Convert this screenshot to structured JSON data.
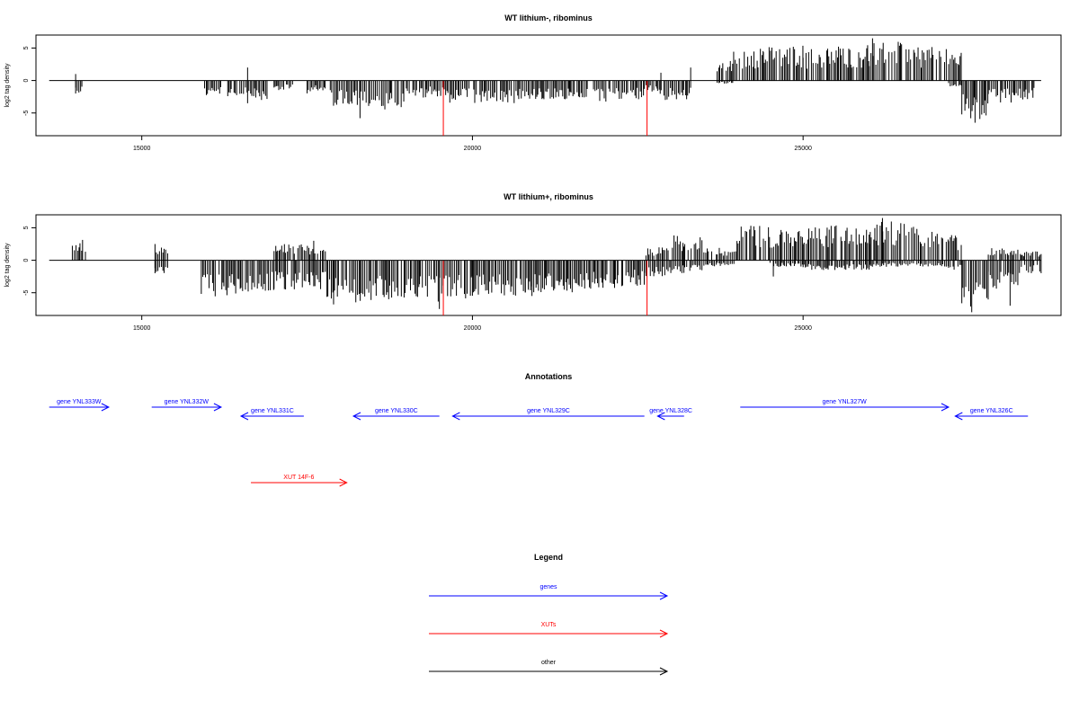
{
  "chart_data": [
    {
      "type": "bar",
      "title": "WT lithium-, ribominus",
      "xlabel": "",
      "ylabel": "log2 tag density",
      "xlim": [
        13400,
        28900
      ],
      "ylim": [
        -8.5,
        7
      ],
      "xticks": [
        15000,
        20000,
        25000
      ],
      "yticks": [
        5,
        0,
        -5
      ],
      "baseline_range": [
        13600,
        28600
      ],
      "profile": [
        [
          14000,
          14100,
          0,
          -2
        ],
        [
          15950,
          16200,
          0,
          -2.5
        ],
        [
          16300,
          16900,
          0,
          -3
        ],
        [
          17000,
          17300,
          0,
          -1.5
        ],
        [
          17500,
          17800,
          0,
          -2
        ],
        [
          17850,
          18400,
          0,
          -4
        ],
        [
          18400,
          19000,
          0,
          -4.5
        ],
        [
          19000,
          19300,
          0,
          -3
        ],
        [
          19300,
          19600,
          0,
          -2.5
        ],
        [
          19600,
          20200,
          0,
          -3.5
        ],
        [
          20200,
          20700,
          0,
          -3.5
        ],
        [
          20700,
          21400,
          0,
          -3
        ],
        [
          21400,
          22100,
          0,
          -3.5
        ],
        [
          22100,
          22600,
          0,
          -3
        ],
        [
          22600,
          22800,
          0,
          -2
        ],
        [
          22800,
          23300,
          0,
          -3
        ],
        [
          23700,
          23950,
          3,
          -0.5
        ],
        [
          23950,
          24400,
          5,
          0
        ],
        [
          24400,
          25000,
          5.5,
          0
        ],
        [
          25000,
          25500,
          5,
          0
        ],
        [
          25500,
          26000,
          5.5,
          0
        ],
        [
          26000,
          26600,
          6,
          0
        ],
        [
          26600,
          27200,
          5.5,
          0
        ],
        [
          27200,
          27400,
          4.5,
          -1
        ],
        [
          27400,
          27800,
          0,
          -6
        ],
        [
          27800,
          28200,
          0,
          -3.5
        ],
        [
          28200,
          28500,
          0,
          -3
        ]
      ],
      "spikes": [
        [
          14000,
          1,
          -2
        ],
        [
          14600,
          0,
          0
        ],
        [
          16600,
          2,
          -3.5
        ],
        [
          18300,
          0,
          -5.8
        ],
        [
          22850,
          1.2,
          0
        ],
        [
          23300,
          2,
          0
        ],
        [
          23900,
          3,
          0
        ],
        [
          26050,
          6.5,
          0
        ],
        [
          27600,
          0,
          -6.5
        ]
      ],
      "highlights": [
        {
          "x": 19560,
          "low": -8.5,
          "color": "#ff0000"
        },
        {
          "x": 22640,
          "low": -8.5,
          "color": "#ff0000"
        }
      ]
    },
    {
      "type": "bar",
      "title": "WT lithium+, ribominus",
      "xlabel": "",
      "ylabel": "log2 tag density",
      "xlim": [
        13400,
        28900
      ],
      "ylim": [
        -8.5,
        7
      ],
      "xticks": [
        15000,
        20000,
        25000
      ],
      "yticks": [
        5,
        0,
        -5
      ],
      "baseline_range": [
        13600,
        28600
      ],
      "profile": [
        [
          13950,
          14150,
          3.5,
          0
        ],
        [
          15200,
          15400,
          2,
          -2
        ],
        [
          15900,
          16500,
          0,
          -6
        ],
        [
          16500,
          17000,
          0,
          -5
        ],
        [
          17000,
          17800,
          2.5,
          -4.5
        ],
        [
          17800,
          18500,
          0,
          -6.5
        ],
        [
          18500,
          19200,
          0,
          -6
        ],
        [
          19200,
          19600,
          0,
          -6.5
        ],
        [
          19600,
          20000,
          0,
          -6
        ],
        [
          20000,
          20800,
          0,
          -5.5
        ],
        [
          20800,
          21600,
          0,
          -5
        ],
        [
          21600,
          22200,
          0,
          -4.5
        ],
        [
          22200,
          22600,
          0,
          -4
        ],
        [
          22600,
          23000,
          2,
          -2.5
        ],
        [
          23000,
          23500,
          4,
          -2
        ],
        [
          23500,
          24000,
          2,
          -1
        ],
        [
          24000,
          24500,
          5.5,
          0
        ],
        [
          24500,
          25000,
          5,
          -1
        ],
        [
          25000,
          25500,
          5.5,
          -1.5
        ],
        [
          25500,
          26000,
          5.5,
          -1.5
        ],
        [
          26000,
          26600,
          6,
          -1
        ],
        [
          26600,
          27200,
          5.5,
          -1
        ],
        [
          27200,
          27400,
          4,
          -1.5
        ],
        [
          27400,
          27800,
          0,
          -7.5
        ],
        [
          27800,
          28300,
          2,
          -5
        ],
        [
          28300,
          28600,
          1.5,
          -2
        ]
      ],
      "spikes": [
        [
          15200,
          2.5,
          -2
        ],
        [
          17600,
          3,
          -4
        ],
        [
          17900,
          0,
          -6.8
        ],
        [
          19500,
          0,
          -7.5
        ],
        [
          20900,
          0,
          -5.5
        ],
        [
          24550,
          0,
          -2.5
        ],
        [
          26200,
          6.5,
          0
        ],
        [
          27550,
          0,
          -8
        ],
        [
          28130,
          0,
          -7
        ]
      ],
      "highlights": [
        {
          "x": 19560,
          "low": -8.5,
          "color": "#ff0000"
        },
        {
          "x": 22640,
          "low": -8.5,
          "color": "#ff0000"
        }
      ]
    }
  ],
  "annotations": {
    "title": "Annotations",
    "genes_color": "#0000ff",
    "xuts_color": "#ff0000",
    "items": [
      {
        "label": "gene YNL333W",
        "kind": "gene",
        "start": 13600,
        "end": 14500,
        "dir": "+",
        "row": 0
      },
      {
        "label": "gene YNL332W",
        "kind": "gene",
        "start": 15150,
        "end": 16200,
        "dir": "+",
        "row": 0
      },
      {
        "label": "gene YNL331C",
        "kind": "gene",
        "start": 16500,
        "end": 17450,
        "dir": "-",
        "row": 1
      },
      {
        "label": "gene YNL330C",
        "kind": "gene",
        "start": 18200,
        "end": 19500,
        "dir": "-",
        "row": 1
      },
      {
        "label": "gene YNL329C",
        "kind": "gene",
        "start": 19700,
        "end": 22600,
        "dir": "-",
        "row": 1
      },
      {
        "label": "gene YNL328C",
        "kind": "gene",
        "start": 22800,
        "end": 23200,
        "dir": "-",
        "row": 1
      },
      {
        "label": "gene YNL327W",
        "kind": "gene",
        "start": 24050,
        "end": 27200,
        "dir": "+",
        "row": 0
      },
      {
        "label": "gene YNL326C",
        "kind": "gene",
        "start": 27300,
        "end": 28400,
        "dir": "-",
        "row": 1
      },
      {
        "label": "XUT 14F-6",
        "kind": "xut",
        "start": 16650,
        "end": 18100,
        "dir": "+",
        "row": 2
      }
    ]
  },
  "legend": {
    "title": "Legend",
    "items": [
      {
        "label": "genes",
        "color": "#0000ff"
      },
      {
        "label": "XUTs",
        "color": "#ff0000"
      },
      {
        "label": "other",
        "color": "#000000"
      }
    ]
  }
}
